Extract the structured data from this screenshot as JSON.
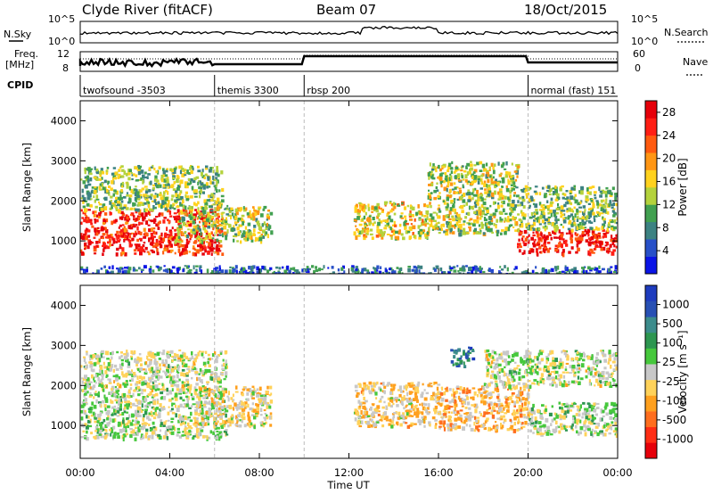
{
  "header": {
    "title": "Clyde River (fitACF)",
    "beam": "Beam 07",
    "date": "18/Oct/2015"
  },
  "summary_panel": {
    "left_labels": {
      "nsky": "N.Sky",
      "freq": "Freq.",
      "freq_unit": "[MHz]",
      "cpid": "CPID"
    },
    "right_labels": {
      "nsearch": "N.Search",
      "nave": "Nave"
    },
    "noise_ticks_left": [
      "10^5",
      "10^0"
    ],
    "noise_ticks_right": [
      "10^5",
      "10^0"
    ],
    "freq_ticks": [
      "12",
      "8"
    ],
    "nave_ticks": [
      "60",
      "0"
    ],
    "cpid_segments": [
      {
        "label": "twofsound -3503",
        "start_hour": 0,
        "end_hour": 6
      },
      {
        "label": "themis 3300",
        "start_hour": 6,
        "end_hour": 10
      },
      {
        "label": "rbsp 200",
        "start_hour": 10,
        "end_hour": 20
      },
      {
        "label": "normal (fast) 151",
        "start_hour": 20,
        "end_hour": 24
      }
    ]
  },
  "chart_data": [
    {
      "type": "heatmap",
      "panel": "power",
      "ylabel": "Slant Range [km]",
      "xlabel": "Time UT",
      "xlim": [
        0,
        24
      ],
      "ylim": [
        180,
        4500
      ],
      "yticks": [
        "1000",
        "2000",
        "3000",
        "4000"
      ],
      "xticks": [
        "00:00",
        "04:00",
        "08:00",
        "12:00",
        "16:00",
        "20:00",
        "00:00"
      ],
      "colorbar": {
        "label": "Power [dB]",
        "range": [
          0,
          30
        ],
        "ticks": [
          "4",
          "8",
          "12",
          "16",
          "20",
          "24",
          "28"
        ],
        "colors": [
          "#0a14e6",
          "#2850c8",
          "#3c8282",
          "#41a050",
          "#b4d23c",
          "#ffd21e",
          "#ff9614",
          "#ff5a0f",
          "#ff1e14",
          "#e6000a"
        ]
      },
      "features": [
        {
          "t_start": 0.0,
          "t_end": 6.3,
          "r_low": 700,
          "r_high": 1800,
          "value_db": 26
        },
        {
          "t_start": 0.0,
          "t_end": 6.3,
          "r_low": 1800,
          "r_high": 2900,
          "value_db": 12
        },
        {
          "t_start": 4.2,
          "t_end": 8.5,
          "r_low": 1000,
          "r_high": 1900,
          "value_db": 14
        },
        {
          "t_start": 12.2,
          "t_end": 15.5,
          "r_low": 1100,
          "r_high": 2000,
          "value_db": 16
        },
        {
          "t_start": 15.5,
          "t_end": 19.5,
          "r_low": 1200,
          "r_high": 3000,
          "value_db": 14
        },
        {
          "t_start": 19.5,
          "t_end": 24.0,
          "r_low": 700,
          "r_high": 1300,
          "value_db": 27
        },
        {
          "t_start": 19.5,
          "t_end": 24.0,
          "r_low": 1300,
          "r_high": 2400,
          "value_db": 12
        },
        {
          "t_start": 0.0,
          "t_end": 24.0,
          "r_low": 180,
          "r_high": 400,
          "value_db": 6
        }
      ]
    },
    {
      "type": "heatmap",
      "panel": "velocity",
      "ylabel": "Slant Range [km]",
      "xlabel": "Time UT",
      "xlim": [
        0,
        24
      ],
      "ylim": [
        180,
        4500
      ],
      "yticks": [
        "1000",
        "2000",
        "3000",
        "4000"
      ],
      "xticks": [
        "00:00",
        "04:00",
        "08:00",
        "12:00",
        "16:00",
        "20:00",
        "00:00"
      ],
      "colorbar": {
        "label": "Velocity [m s⁻¹]",
        "range": [
          -1200,
          1200
        ],
        "ticks": [
          "1000",
          "500",
          "100",
          "25",
          "-25",
          "-100",
          "-500",
          "-1000"
        ],
        "colors": [
          "#e6000a",
          "#ff2d14",
          "#ff6e1e",
          "#ffa01e",
          "#ffd25a",
          "#c8c8c8",
          "#46c83c",
          "#2d9650",
          "#3c8c8c",
          "#2850b4",
          "#1e3cbe"
        ]
      },
      "features": [
        {
          "t_start": 0.0,
          "t_end": 6.5,
          "r_low": 700,
          "r_high": 1800,
          "value_ms": 60
        },
        {
          "t_start": 0.0,
          "t_end": 6.5,
          "r_low": 1800,
          "r_high": 2900,
          "value_ms": 0
        },
        {
          "t_start": 5.0,
          "t_end": 8.5,
          "r_low": 1000,
          "r_high": 2000,
          "value_ms": -150
        },
        {
          "t_start": 12.2,
          "t_end": 16.0,
          "r_low": 1000,
          "r_high": 2100,
          "value_ms": -200
        },
        {
          "t_start": 16.0,
          "t_end": 20.0,
          "r_low": 900,
          "r_high": 2000,
          "value_ms": -300
        },
        {
          "t_start": 16.5,
          "t_end": 17.5,
          "r_low": 2500,
          "r_high": 3000,
          "value_ms": 700
        },
        {
          "t_start": 18.0,
          "t_end": 24.0,
          "r_low": 2000,
          "r_high": 2900,
          "value_ms": 0
        },
        {
          "t_start": 20.0,
          "t_end": 24.0,
          "r_low": 800,
          "r_high": 1600,
          "value_ms": 60
        }
      ]
    }
  ]
}
